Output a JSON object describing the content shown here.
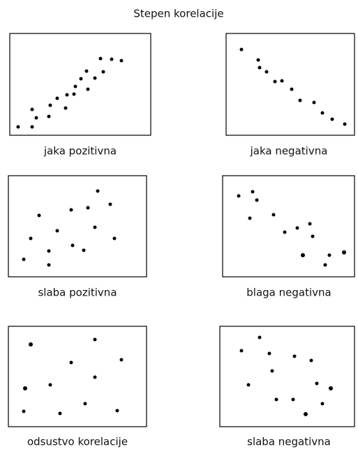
{
  "title": "Stepen korelacije",
  "panels": [
    {
      "label": "jaka pozitivna"
    },
    {
      "label": "jaka negativna"
    },
    {
      "label": "slaba pozitivna"
    },
    {
      "label": "blaga negativna"
    },
    {
      "label": "odsustvo korelacije"
    },
    {
      "label": "slaba negativna"
    }
  ]
}
